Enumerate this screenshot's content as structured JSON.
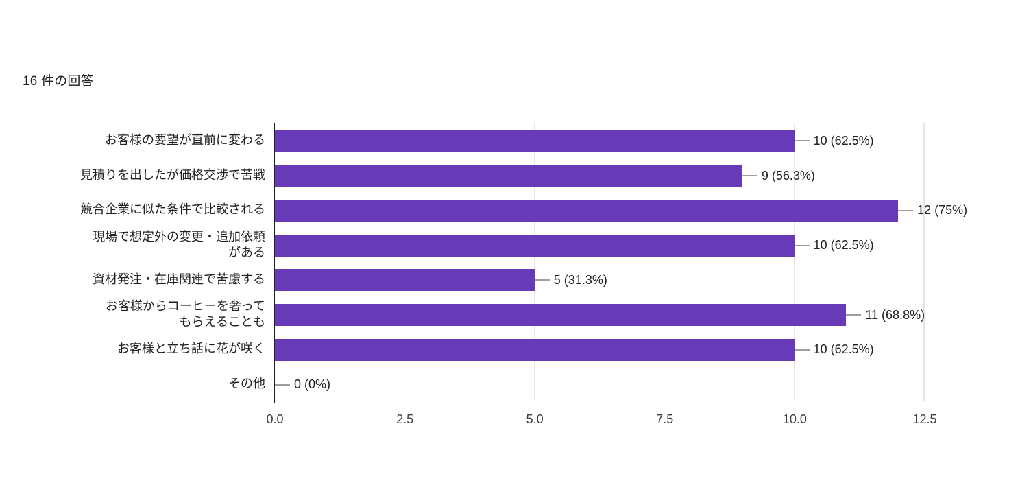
{
  "header": {
    "response_count": "16 件の回答"
  },
  "chart_data": {
    "type": "bar",
    "orientation": "horizontal",
    "title": "16 件の回答",
    "total_responses": 16,
    "categories": [
      "お客様の要望が直前に変わる",
      "見積りを出したが価格交渉で苦戦",
      "競合企業に似た条件で比較される",
      "現場で想定外の変更・追加依頼がある",
      "資材発注・在庫関連で苦慮する",
      "お客様からコーヒーを奢ってもらえることも",
      "お客様と立ち話に花が咲く",
      "その他"
    ],
    "label_lines": [
      [
        "お客様の要望が直前に変わる"
      ],
      [
        "見積りを出したが価格交渉で苦戦"
      ],
      [
        "競合企業に似た条件で比較される"
      ],
      [
        "現場で想定外の変更・追加依頼",
        "がある"
      ],
      [
        "資材発注・在庫関連で苦慮する"
      ],
      [
        "お客様からコーヒーを奢って",
        "もらえることも"
      ],
      [
        "お客様と立ち話に花が咲く"
      ],
      [
        "その他"
      ]
    ],
    "values": [
      10,
      9,
      12,
      10,
      5,
      11,
      10,
      0
    ],
    "value_labels": [
      "10 (62.5%)",
      "9 (56.3%)",
      "12 (75%)",
      "10 (62.5%)",
      "5 (31.3%)",
      "11 (68.8%)",
      "10 (62.5%)",
      "0 (0%)"
    ],
    "x_ticks": [
      "0.0",
      "2.5",
      "5.0",
      "7.5",
      "10.0",
      "12.5"
    ],
    "xlim": [
      0,
      12.5
    ],
    "grid": true,
    "legend": "none",
    "xlabel": "",
    "ylabel": "",
    "bar_color": "#673ab7",
    "axis_color": "#212121",
    "gridline_color": "#e8e8e8",
    "leader_color": "#9e9e9e"
  }
}
